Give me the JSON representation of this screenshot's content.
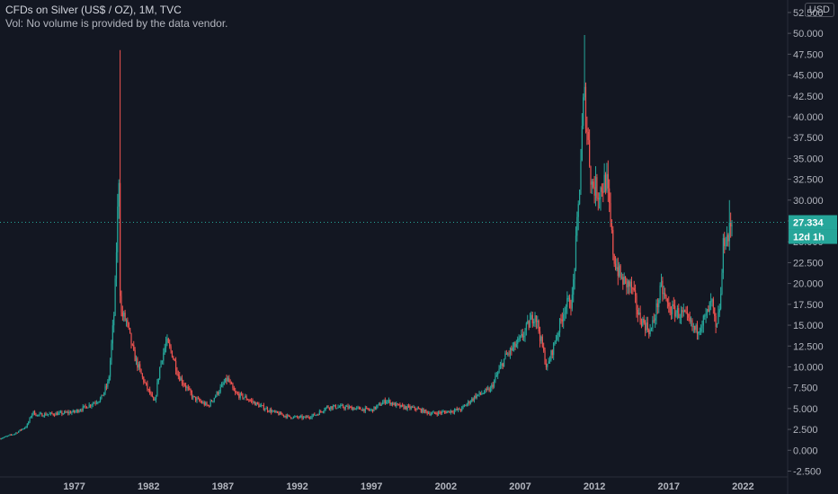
{
  "header": {
    "title": "CFDs on Silver (US$ / OZ), 1M, TVC",
    "volume_note": "Vol: No volume is provided by the data vendor."
  },
  "currency": "USD",
  "colors": {
    "background": "#131722",
    "up": "#26a69a",
    "down": "#ef5350",
    "grid": "#1e222d",
    "price_badge": "#26a69a"
  },
  "price_badge": {
    "value": "27.334",
    "countdown": "12d 1h"
  },
  "chart_data": {
    "type": "candlestick",
    "title": "CFDs on Silver (US$ / OZ), 1M, TVC",
    "ylim": [
      -3.2,
      54
    ],
    "xlim": [
      1972.0,
      2025.0
    ],
    "y_ticks": [
      "-2.500",
      "0.000",
      "2.500",
      "5.000",
      "7.500",
      "10.000",
      "12.500",
      "15.000",
      "17.500",
      "20.000",
      "22.500",
      "25.000",
      "27.500",
      "30.000",
      "32.500",
      "35.000",
      "37.500",
      "40.000",
      "42.500",
      "45.000",
      "47.500",
      "50.000",
      "52.500"
    ],
    "x_ticks": [
      "1977",
      "1982",
      "1987",
      "1992",
      "1997",
      "2002",
      "2007",
      "2012",
      "2017",
      "2022"
    ],
    "last_price": 27.334,
    "grid": false,
    "anchor_points": [
      [
        1972.0,
        1.4
      ],
      [
        1973.0,
        2.0
      ],
      [
        1973.8,
        2.9
      ],
      [
        1974.2,
        4.6
      ],
      [
        1974.5,
        4.2
      ],
      [
        1975.0,
        4.3
      ],
      [
        1976.0,
        4.4
      ],
      [
        1977.0,
        4.6
      ],
      [
        1978.0,
        5.4
      ],
      [
        1978.8,
        6.2
      ],
      [
        1979.3,
        8.2
      ],
      [
        1979.7,
        17.0
      ],
      [
        1980.0,
        33.0
      ],
      [
        1980.1,
        16.5
      ],
      [
        1980.5,
        15.5
      ],
      [
        1981.0,
        11.5
      ],
      [
        1981.6,
        8.6
      ],
      [
        1982.4,
        5.6
      ],
      [
        1982.8,
        10.5
      ],
      [
        1983.2,
        13.0
      ],
      [
        1983.6,
        11.5
      ],
      [
        1984.0,
        9.0
      ],
      [
        1985.0,
        6.3
      ],
      [
        1986.0,
        5.3
      ],
      [
        1987.3,
        8.6
      ],
      [
        1987.8,
        6.8
      ],
      [
        1988.5,
        6.3
      ],
      [
        1989.5,
        5.3
      ],
      [
        1990.5,
        4.5
      ],
      [
        1991.5,
        4.0
      ],
      [
        1992.5,
        3.9
      ],
      [
        1993.3,
        4.3
      ],
      [
        1994.0,
        5.2
      ],
      [
        1995.0,
        5.2
      ],
      [
        1996.0,
        5.0
      ],
      [
        1997.0,
        4.8
      ],
      [
        1998.0,
        6.0
      ],
      [
        1998.5,
        5.5
      ],
      [
        1999.0,
        5.2
      ],
      [
        2000.0,
        5.0
      ],
      [
        2001.0,
        4.4
      ],
      [
        2002.0,
        4.6
      ],
      [
        2003.0,
        4.9
      ],
      [
        2004.0,
        6.5
      ],
      [
        2005.0,
        7.3
      ],
      [
        2006.0,
        11.2
      ],
      [
        2007.0,
        13.2
      ],
      [
        2008.0,
        16.5
      ],
      [
        2008.8,
        9.8
      ],
      [
        2009.5,
        14.0
      ],
      [
        2010.0,
        17.2
      ],
      [
        2010.5,
        18.0
      ],
      [
        2010.9,
        28.5
      ],
      [
        2011.3,
        43.0
      ],
      [
        2011.8,
        32.0
      ],
      [
        2012.3,
        31.0
      ],
      [
        2012.8,
        32.5
      ],
      [
        2013.3,
        23.0
      ],
      [
        2013.8,
        20.5
      ],
      [
        2014.5,
        19.5
      ],
      [
        2015.0,
        16.0
      ],
      [
        2015.8,
        14.2
      ],
      [
        2016.5,
        19.5
      ],
      [
        2017.0,
        17.0
      ],
      [
        2018.0,
        16.2
      ],
      [
        2018.8,
        14.3
      ],
      [
        2019.5,
        16.0
      ],
      [
        2019.9,
        17.8
      ],
      [
        2020.2,
        14.0
      ],
      [
        2020.5,
        18.5
      ],
      [
        2020.7,
        25.5
      ],
      [
        2021.0,
        25.5
      ],
      [
        2021.2,
        27.3
      ]
    ],
    "spikes": [
      [
        1980.05,
        48.0
      ],
      [
        2011.35,
        49.8
      ],
      [
        2021.1,
        30.0
      ]
    ]
  }
}
